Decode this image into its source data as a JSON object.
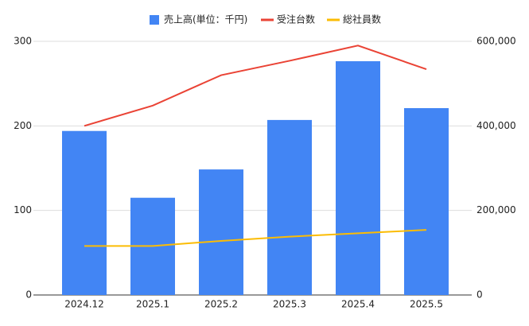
{
  "chart_data": {
    "type": "combo",
    "categories": [
      "2024.12",
      "2025.1",
      "2025.2",
      "2025.3",
      "2025.4",
      "2025.5"
    ],
    "series": [
      {
        "name": "売上高(単位：千円)",
        "type": "bar",
        "axis": "y2",
        "color": "#4285f4",
        "values": [
          388000,
          230000,
          297000,
          414000,
          553000,
          442000
        ]
      },
      {
        "name": "受注台数",
        "type": "line",
        "color": "#ea4335",
        "values": [
          200,
          224,
          260,
          277,
          295,
          267
        ]
      },
      {
        "name": "総社員数",
        "type": "line",
        "color": "#fbbc04",
        "values": [
          58,
          58,
          64,
          69,
          73,
          77
        ]
      }
    ],
    "ylim": [
      0,
      300
    ],
    "yticks": [
      0,
      100,
      200,
      300
    ],
    "y2lim": [
      0,
      600000
    ],
    "y2ticks": [
      0,
      {
        "value": 200000,
        "label": "200,000"
      },
      {
        "value": 400000,
        "label": "400,000"
      },
      {
        "value": 600000,
        "label": "600,000"
      }
    ],
    "grid": true,
    "legend": "top"
  }
}
